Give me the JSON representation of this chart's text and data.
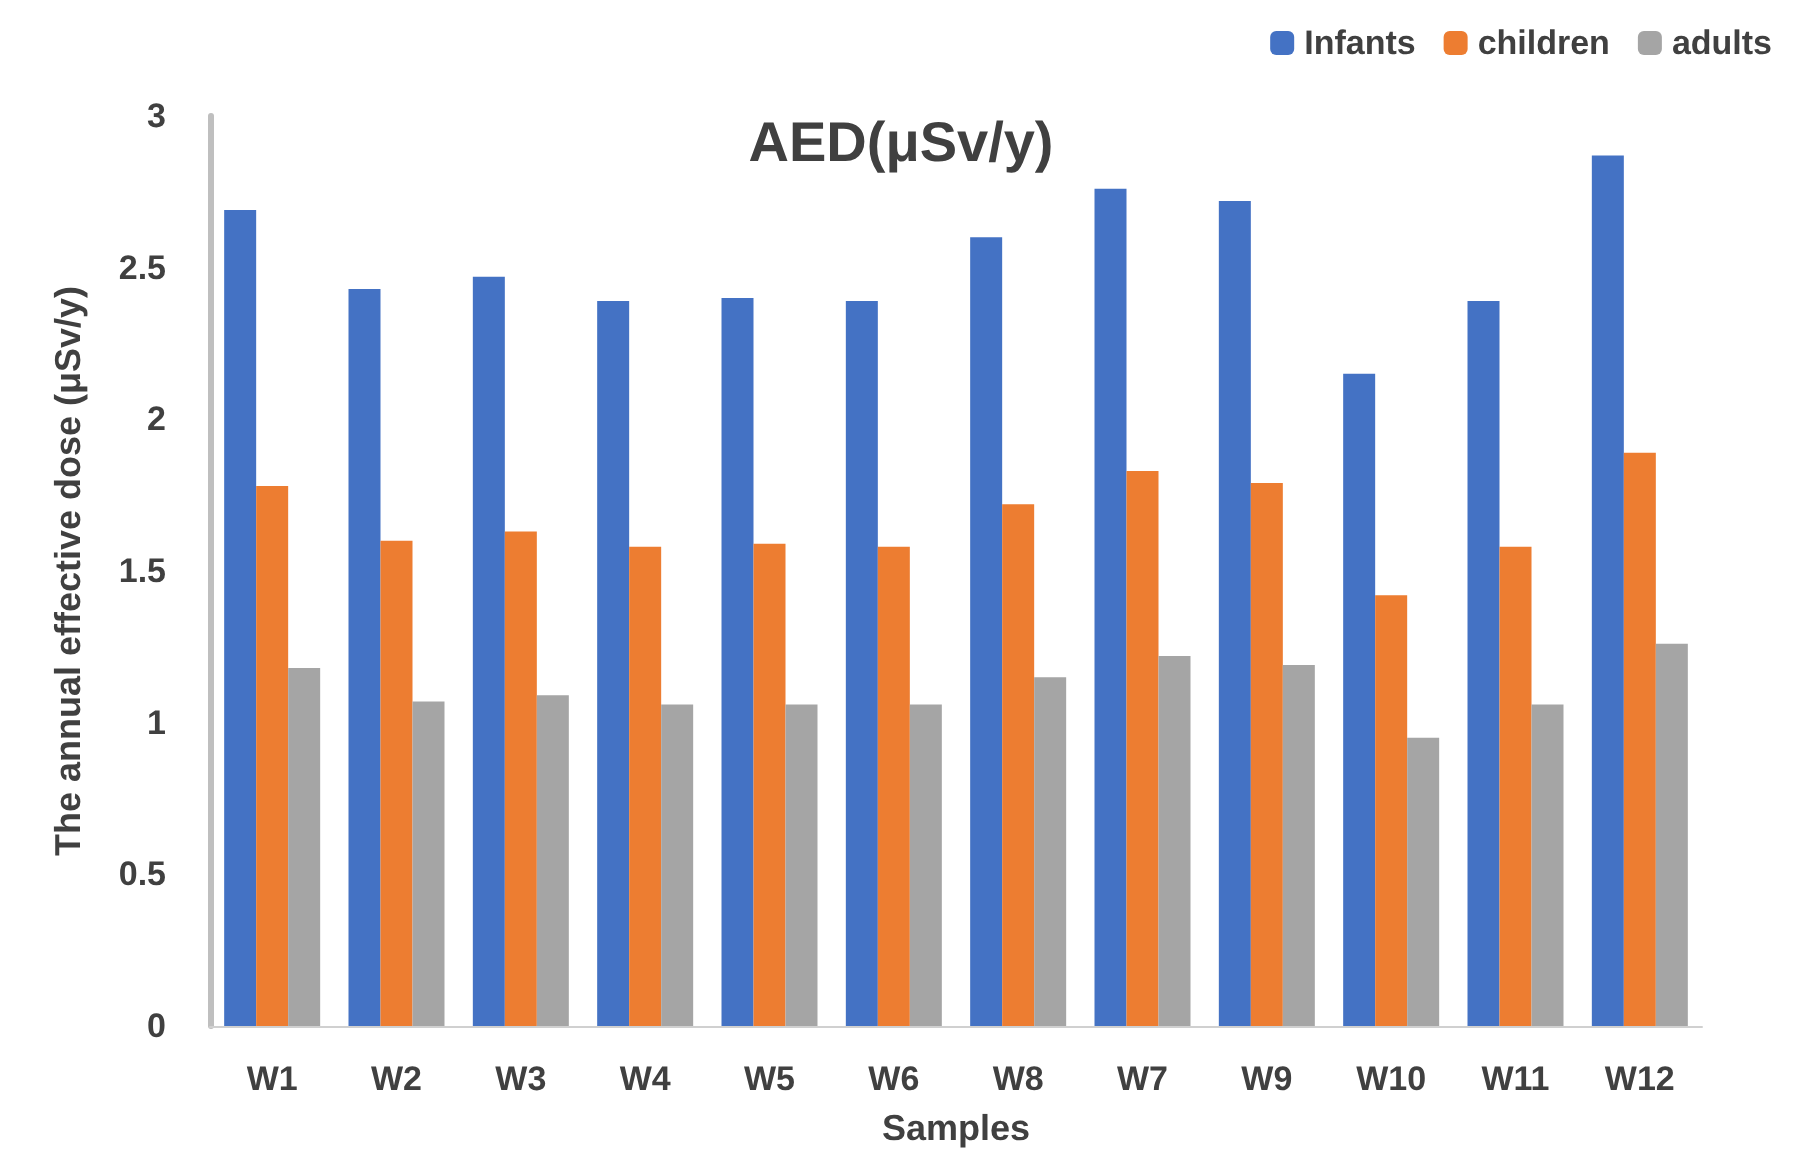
{
  "chart_data": {
    "type": "bar",
    "title": "AED(μSv/y)",
    "xlabel": "Samples",
    "ylabel": "The annual effective dose (μSv/y)",
    "categories": [
      "W1",
      "W2",
      "W3",
      "W4",
      "W5",
      "W6",
      "W8",
      "W7",
      "W9",
      "W10",
      "W11",
      "W12"
    ],
    "series": [
      {
        "name": "Infants",
        "color": "#4472c4",
        "values": [
          2.69,
          2.43,
          2.47,
          2.39,
          2.4,
          2.39,
          2.6,
          2.76,
          2.72,
          2.15,
          2.39,
          2.87
        ]
      },
      {
        "name": "children",
        "color": "#ed7d31",
        "values": [
          1.78,
          1.6,
          1.63,
          1.58,
          1.59,
          1.58,
          1.72,
          1.83,
          1.79,
          1.42,
          1.58,
          1.89
        ]
      },
      {
        "name": "adults",
        "color": "#a5a5a5",
        "values": [
          1.18,
          1.07,
          1.09,
          1.06,
          1.06,
          1.06,
          1.15,
          1.22,
          1.19,
          0.95,
          1.06,
          1.26
        ]
      }
    ],
    "ylim": [
      0,
      3
    ],
    "yticks": [
      0,
      0.5,
      1,
      1.5,
      2,
      2.5,
      3
    ],
    "grid": false,
    "legend": "top right"
  }
}
